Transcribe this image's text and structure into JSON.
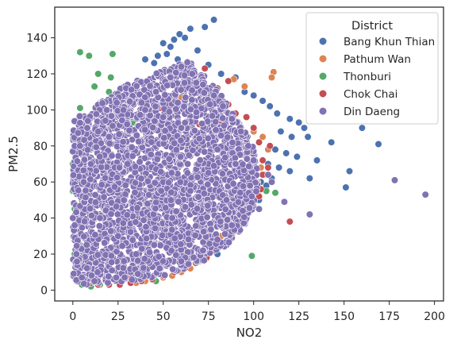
{
  "chart_data": {
    "type": "scatter",
    "title": "",
    "xlabel": "NO2",
    "ylabel": "PM2.5",
    "xlim": [
      -10,
      205
    ],
    "ylim": [
      -6,
      157
    ],
    "x_ticks": [
      0,
      25,
      50,
      75,
      100,
      125,
      150,
      175,
      200
    ],
    "y_ticks": [
      0,
      20,
      40,
      60,
      80,
      100,
      120,
      140
    ],
    "x_tick_labels": [
      "0",
      "25",
      "50",
      "75",
      "100",
      "125",
      "150",
      "175",
      "200"
    ],
    "y_tick_labels": [
      "0",
      "20",
      "40",
      "60",
      "80",
      "100",
      "120",
      "140"
    ],
    "grid": false,
    "legend": {
      "title": "District",
      "placement": "top-right",
      "entries": [
        "Bang Khun Thian",
        "Pathum Wan",
        "Thonburi",
        "Chok Chai",
        "Din Daeng"
      ]
    },
    "series": [
      {
        "name": "Bang Khun Thian",
        "color": "#4c72b0",
        "points": [
          [
            78,
            150
          ],
          [
            73,
            146
          ],
          [
            65,
            145
          ],
          [
            59,
            142
          ],
          [
            62,
            140
          ],
          [
            56,
            139
          ],
          [
            50,
            137
          ],
          [
            54,
            135
          ],
          [
            69,
            133
          ],
          [
            52,
            131
          ],
          [
            47,
            130
          ],
          [
            40,
            128
          ],
          [
            58,
            128
          ],
          [
            45,
            126
          ],
          [
            60,
            122
          ],
          [
            75,
            125
          ],
          [
            82,
            120
          ],
          [
            90,
            118
          ],
          [
            95,
            110
          ],
          [
            100,
            108
          ],
          [
            105,
            105
          ],
          [
            109,
            102
          ],
          [
            113,
            98
          ],
          [
            120,
            95
          ],
          [
            125,
            93
          ],
          [
            128,
            90
          ],
          [
            160,
            90
          ],
          [
            115,
            88
          ],
          [
            121,
            85
          ],
          [
            130,
            85
          ],
          [
            143,
            82
          ],
          [
            169,
            81
          ],
          [
            112,
            78
          ],
          [
            118,
            76
          ],
          [
            124,
            74
          ],
          [
            135,
            72
          ],
          [
            108,
            70
          ],
          [
            114,
            68
          ],
          [
            120,
            66
          ],
          [
            153,
            66
          ],
          [
            106,
            64
          ],
          [
            110,
            62
          ],
          [
            131,
            62
          ],
          [
            104,
            60
          ],
          [
            107,
            58
          ],
          [
            151,
            57
          ],
          [
            100,
            55
          ],
          [
            103,
            50
          ],
          [
            98,
            48
          ],
          [
            96,
            44
          ],
          [
            94,
            40
          ],
          [
            90,
            35
          ],
          [
            88,
            30
          ],
          [
            85,
            25
          ],
          [
            80,
            20
          ]
        ]
      },
      {
        "name": "Pathum Wan",
        "color": "#dd8452",
        "points": [
          [
            111,
            121
          ],
          [
            110,
            118
          ],
          [
            89,
            117
          ],
          [
            95,
            113
          ],
          [
            76,
            111
          ],
          [
            60,
            107
          ],
          [
            68,
            104
          ],
          [
            55,
            102
          ],
          [
            62,
            100
          ],
          [
            70,
            97
          ],
          [
            80,
            95
          ],
          [
            92,
            92
          ],
          [
            86,
            90
          ],
          [
            100,
            88
          ],
          [
            105,
            85
          ],
          [
            96,
            80
          ],
          [
            108,
            78
          ],
          [
            99,
            72
          ],
          [
            104,
            68
          ],
          [
            102,
            60
          ],
          [
            97,
            55
          ],
          [
            95,
            50
          ],
          [
            92,
            45
          ],
          [
            88,
            40
          ],
          [
            86,
            36
          ],
          [
            82,
            30
          ],
          [
            78,
            25
          ],
          [
            74,
            20
          ],
          [
            70,
            16
          ],
          [
            65,
            12
          ],
          [
            60,
            10
          ],
          [
            55,
            8
          ],
          [
            50,
            7
          ],
          [
            45,
            6
          ],
          [
            40,
            5
          ],
          [
            35,
            4
          ]
        ]
      },
      {
        "name": "Thonburi",
        "color": "#55a868",
        "points": [
          [
            4,
            132
          ],
          [
            9,
            130
          ],
          [
            22,
            131
          ],
          [
            14,
            120
          ],
          [
            21,
            118
          ],
          [
            12,
            113
          ],
          [
            20,
            110
          ],
          [
            26,
            110
          ],
          [
            28,
            108
          ],
          [
            15,
            104
          ],
          [
            4,
            101
          ],
          [
            17,
            99
          ],
          [
            30,
            102
          ],
          [
            10,
            96
          ],
          [
            22,
            95
          ],
          [
            2,
            94
          ],
          [
            33,
            93
          ],
          [
            18,
            90
          ],
          [
            6,
            88
          ],
          [
            12,
            87
          ],
          [
            8,
            85
          ],
          [
            25,
            84
          ],
          [
            14,
            82
          ],
          [
            3,
            80
          ],
          [
            10,
            78
          ],
          [
            1,
            76
          ],
          [
            20,
            75
          ],
          [
            6,
            74
          ],
          [
            16,
            72
          ],
          [
            0,
            70
          ],
          [
            4,
            67
          ],
          [
            2,
            65
          ],
          [
            8,
            63
          ],
          [
            1,
            60
          ],
          [
            107,
            55
          ],
          [
            112,
            54
          ],
          [
            99,
            19
          ],
          [
            46,
            5
          ],
          [
            2,
            5
          ],
          [
            5,
            3
          ],
          [
            10,
            2
          ],
          [
            15,
            3
          ],
          [
            3,
            10
          ],
          [
            6,
            14
          ],
          [
            1,
            20
          ],
          [
            4,
            25
          ],
          [
            2,
            30
          ],
          [
            0,
            35
          ],
          [
            3,
            40
          ],
          [
            1,
            45
          ],
          [
            5,
            50
          ],
          [
            0,
            55
          ]
        ]
      },
      {
        "name": "Chok Chai",
        "color": "#c44e52",
        "points": [
          [
            73,
            123
          ],
          [
            86,
            116
          ],
          [
            80,
            112
          ],
          [
            68,
            112
          ],
          [
            74,
            107
          ],
          [
            86,
            103
          ],
          [
            60,
            103
          ],
          [
            48,
            101
          ],
          [
            56,
            100
          ],
          [
            90,
            98
          ],
          [
            96,
            96
          ],
          [
            82,
            94
          ],
          [
            70,
            92
          ],
          [
            100,
            90
          ],
          [
            63,
            90
          ],
          [
            94,
            86
          ],
          [
            103,
            82
          ],
          [
            78,
            86
          ],
          [
            88,
            80
          ],
          [
            109,
            80
          ],
          [
            96,
            76
          ],
          [
            105,
            72
          ],
          [
            108,
            68
          ],
          [
            98,
            66
          ],
          [
            105,
            64
          ],
          [
            100,
            60
          ],
          [
            104,
            56
          ],
          [
            103,
            52
          ],
          [
            99,
            50
          ],
          [
            97,
            46
          ],
          [
            95,
            42
          ],
          [
            92,
            38
          ],
          [
            90,
            34
          ],
          [
            120,
            38
          ],
          [
            88,
            30
          ],
          [
            82,
            26
          ],
          [
            78,
            22
          ],
          [
            74,
            18
          ],
          [
            68,
            15
          ],
          [
            62,
            12
          ],
          [
            56,
            10
          ],
          [
            50,
            8
          ],
          [
            44,
            6
          ],
          [
            38,
            5
          ],
          [
            32,
            4
          ],
          [
            26,
            3
          ],
          [
            20,
            3
          ],
          [
            14,
            3
          ],
          [
            10,
            4
          ],
          [
            18,
            6
          ],
          [
            30,
            7
          ]
        ]
      },
      {
        "name": "Din Daeng",
        "color": "#8172b3",
        "density": {
          "boundary": [
            [
              0,
              3
            ],
            [
              0,
              95
            ],
            [
              5,
              97
            ],
            [
              10,
              100
            ],
            [
              20,
              108
            ],
            [
              30,
              114
            ],
            [
              40,
              118
            ],
            [
              48,
              121
            ],
            [
              55,
              124
            ],
            [
              62,
              127
            ],
            [
              68,
              125
            ],
            [
              72,
              120
            ],
            [
              78,
              114
            ],
            [
              82,
              108
            ],
            [
              86,
              102
            ],
            [
              90,
              96
            ],
            [
              94,
              90
            ],
            [
              98,
              84
            ],
            [
              101,
              76
            ],
            [
              102,
              68
            ],
            [
              103,
              60
            ],
            [
              102,
              52
            ],
            [
              99,
              44
            ],
            [
              95,
              36
            ],
            [
              90,
              30
            ],
            [
              84,
              24
            ],
            [
              78,
              19
            ],
            [
              70,
              15
            ],
            [
              60,
              11
            ],
            [
              50,
              8
            ],
            [
              40,
              6
            ],
            [
              30,
              5
            ],
            [
              20,
              4
            ],
            [
              10,
              3
            ]
          ],
          "count": 2700
        },
        "points": [
          [
            195,
            53
          ],
          [
            178,
            61
          ],
          [
            131,
            42
          ],
          [
            117,
            49
          ],
          [
            103,
            45
          ],
          [
            99,
            52
          ],
          [
            110,
            60
          ],
          [
            108,
            64
          ],
          [
            100,
            72
          ],
          [
            97,
            80
          ],
          [
            93,
            88
          ],
          [
            88,
            95
          ],
          [
            83,
            102
          ],
          [
            78,
            108
          ],
          [
            72,
            114
          ],
          [
            66,
            120
          ],
          [
            60,
            124
          ],
          [
            54,
            118
          ],
          [
            46,
            110
          ],
          [
            38,
            104
          ],
          [
            28,
            100
          ],
          [
            18,
            94
          ],
          [
            8,
            90
          ],
          [
            4,
            80
          ],
          [
            6,
            60
          ],
          [
            0,
            40
          ],
          [
            2,
            20
          ],
          [
            5,
            7
          ],
          [
            12,
            5
          ],
          [
            24,
            7
          ],
          [
            36,
            9
          ],
          [
            48,
            12
          ],
          [
            60,
            16
          ],
          [
            72,
            22
          ],
          [
            80,
            28
          ],
          [
            88,
            36
          ],
          [
            94,
            44
          ],
          [
            98,
            58
          ],
          [
            90,
            70
          ],
          [
            80,
            78
          ],
          [
            70,
            84
          ],
          [
            60,
            90
          ],
          [
            50,
            96
          ],
          [
            40,
            100
          ],
          [
            30,
            92
          ],
          [
            20,
            85
          ],
          [
            10,
            70
          ],
          [
            15,
            40
          ],
          [
            25,
            30
          ],
          [
            35,
            20
          ],
          [
            45,
            25
          ],
          [
            55,
            40
          ],
          [
            65,
            55
          ],
          [
            75,
            65
          ],
          [
            85,
            50
          ]
        ]
      }
    ]
  }
}
